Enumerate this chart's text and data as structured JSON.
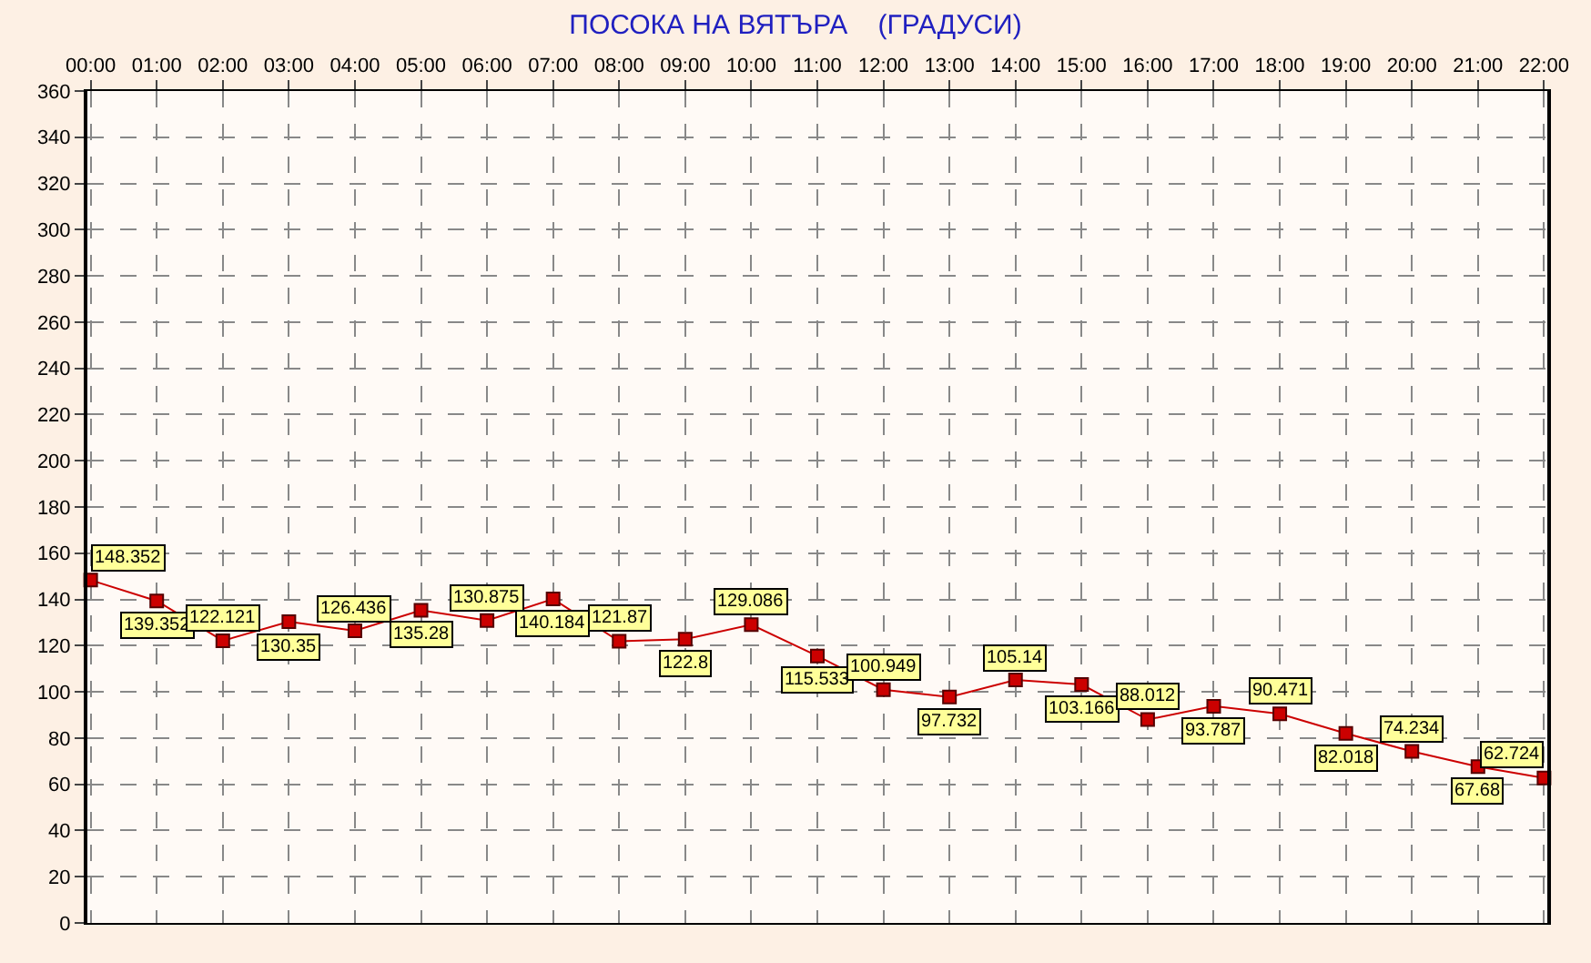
{
  "chart_data": {
    "type": "line",
    "title": "ПОСОКА НА ВЯТЪРА    (ГРАДУСИ)",
    "categories": [
      "00:00",
      "01:00",
      "02:00",
      "03:00",
      "04:00",
      "05:00",
      "06:00",
      "07:00",
      "08:00",
      "09:00",
      "10:00",
      "11:00",
      "12:00",
      "13:00",
      "14:00",
      "15:00",
      "16:00",
      "17:00",
      "18:00",
      "19:00",
      "20:00",
      "21:00",
      "22:00"
    ],
    "series": [
      {
        "color": "#cc0000",
        "values": [
          148.352,
          139.352,
          122.121,
          130.35,
          126.436,
          135.28,
          130.875,
          140.184,
          121.87,
          122.8,
          129.086,
          115.533,
          100.949,
          97.732,
          105.14,
          103.166,
          88.012,
          93.787,
          90.471,
          82.018,
          74.234,
          67.68,
          62.724
        ]
      }
    ],
    "ylim": [
      0,
      360
    ],
    "yticks": [
      0,
      20,
      40,
      60,
      80,
      100,
      120,
      140,
      160,
      180,
      200,
      220,
      240,
      260,
      280,
      300,
      320,
      340,
      360
    ],
    "grid": true,
    "legend": false,
    "marker": "square",
    "line_style": "solid",
    "data_labels": true
  }
}
